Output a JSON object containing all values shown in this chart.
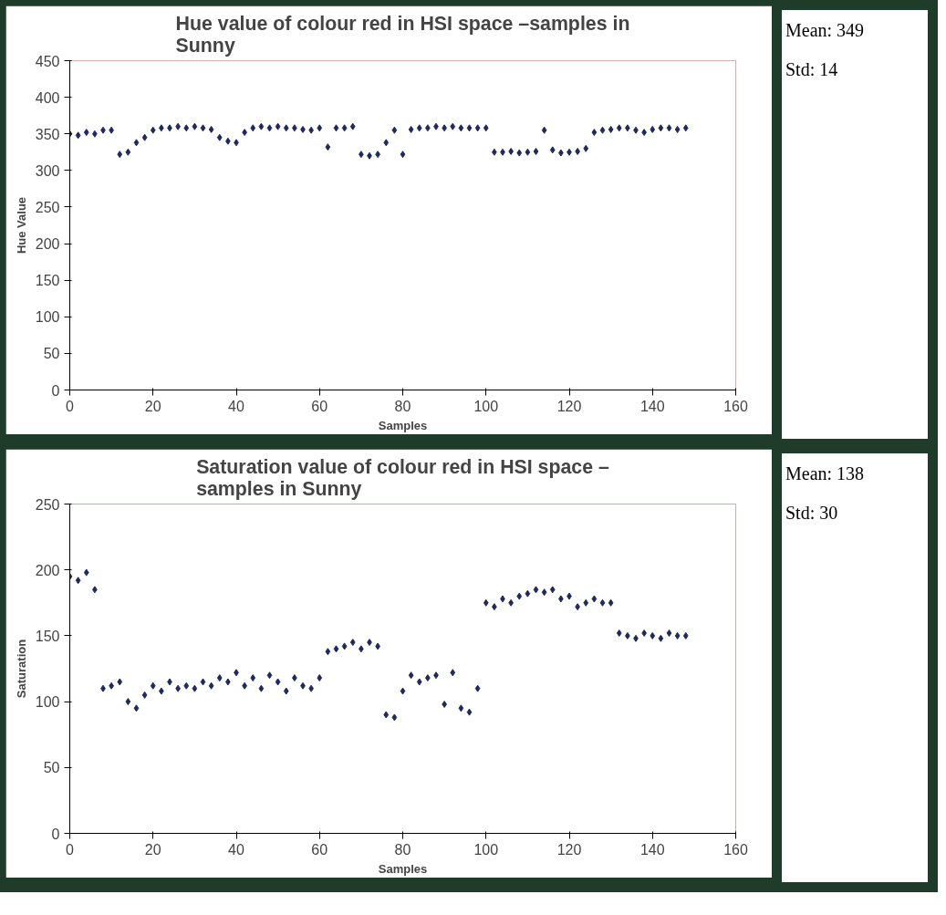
{
  "chart_data": [
    {
      "type": "scatter",
      "title": "Hue value of colour red in HSI space –samples in Sunny",
      "xlabel": "Samples",
      "ylabel": "Hue Value",
      "color": "#1f2a5a",
      "marker": "diamond",
      "xlim": [
        0,
        160
      ],
      "xticks": [
        0,
        20,
        40,
        60,
        80,
        100,
        120,
        140,
        160
      ],
      "ylim": [
        0,
        450
      ],
      "yticks": [
        0,
        50,
        100,
        150,
        200,
        250,
        300,
        350,
        400,
        450
      ],
      "grid": false,
      "x": [
        0,
        2,
        4,
        6,
        8,
        10,
        12,
        14,
        16,
        18,
        20,
        22,
        24,
        26,
        28,
        30,
        32,
        34,
        36,
        38,
        40,
        42,
        44,
        46,
        48,
        50,
        52,
        54,
        56,
        58,
        60,
        62,
        64,
        66,
        68,
        70,
        72,
        74,
        76,
        78,
        80,
        82,
        84,
        86,
        88,
        90,
        92,
        94,
        96,
        98,
        100,
        102,
        104,
        106,
        108,
        110,
        112,
        114,
        116,
        118,
        120,
        122,
        124,
        126,
        128,
        130,
        132,
        134,
        136,
        138,
        140,
        142,
        144,
        146,
        148
      ],
      "values": [
        350,
        348,
        352,
        350,
        355,
        355,
        322,
        325,
        338,
        345,
        355,
        358,
        358,
        360,
        358,
        360,
        358,
        356,
        345,
        340,
        338,
        352,
        358,
        360,
        358,
        360,
        358,
        358,
        356,
        355,
        358,
        332,
        358,
        358,
        360,
        322,
        320,
        322,
        338,
        355,
        322,
        356,
        358,
        358,
        360,
        358,
        360,
        358,
        358,
        358,
        358,
        325,
        325,
        326,
        324,
        325,
        326,
        355,
        328,
        324,
        325,
        326,
        330,
        352,
        355,
        356,
        358,
        358,
        355,
        352,
        356,
        358,
        358,
        356,
        358
      ]
    },
    {
      "type": "other",
      "annotations": [
        "Mean: 349",
        "Std: 14"
      ]
    },
    {
      "type": "scatter",
      "title": "Saturation value of colour red in HSI space – samples in Sunny",
      "xlabel": "Samples",
      "ylabel": "Saturation",
      "color": "#1f2a5a",
      "marker": "diamond",
      "xlim": [
        0,
        160
      ],
      "xticks": [
        0,
        20,
        40,
        60,
        80,
        100,
        120,
        140,
        160
      ],
      "ylim": [
        0,
        250
      ],
      "yticks": [
        0,
        50,
        100,
        150,
        200,
        250
      ],
      "grid": false,
      "x": [
        0,
        2,
        4,
        6,
        8,
        10,
        12,
        14,
        16,
        18,
        20,
        22,
        24,
        26,
        28,
        30,
        32,
        34,
        36,
        38,
        40,
        42,
        44,
        46,
        48,
        50,
        52,
        54,
        56,
        58,
        60,
        62,
        64,
        66,
        68,
        70,
        72,
        74,
        76,
        78,
        80,
        82,
        84,
        86,
        88,
        90,
        92,
        94,
        96,
        98,
        100,
        102,
        104,
        106,
        108,
        110,
        112,
        114,
        116,
        118,
        120,
        122,
        124,
        126,
        128,
        130,
        132,
        134,
        136,
        138,
        140,
        142,
        144,
        146,
        148
      ],
      "values": [
        195,
        192,
        198,
        185,
        110,
        112,
        115,
        100,
        95,
        105,
        112,
        108,
        115,
        110,
        112,
        110,
        115,
        112,
        118,
        115,
        122,
        112,
        118,
        110,
        120,
        115,
        108,
        118,
        112,
        110,
        118,
        138,
        140,
        142,
        145,
        140,
        145,
        142,
        90,
        88,
        108,
        120,
        115,
        118,
        120,
        98,
        122,
        95,
        92,
        110,
        175,
        172,
        178,
        175,
        180,
        182,
        185,
        183,
        185,
        178,
        180,
        172,
        175,
        178,
        175,
        175,
        152,
        150,
        148,
        152,
        150,
        148,
        152,
        150,
        150
      ]
    },
    {
      "type": "other",
      "annotations": [
        "Mean: 138",
        "Std: 30"
      ]
    }
  ]
}
